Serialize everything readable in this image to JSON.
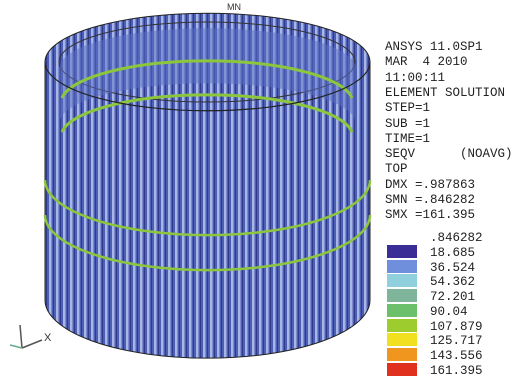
{
  "header": {
    "lines": [
      "ANSYS 11.0SP1",
      "MAR  4 2010",
      "11:00:11",
      "ELEMENT SOLUTION",
      "STEP=1",
      "SUB =1",
      "TIME=1",
      "SEQV      (NOAVG)",
      "TOP",
      "DMX =.987863",
      "SMN =.846282",
      "SMX =161.395"
    ]
  },
  "legend": {
    "min_label": ".846282",
    "items": [
      {
        "color": "#3a2e96",
        "label": "18.685"
      },
      {
        "color": "#6f8fdc",
        "label": "36.524"
      },
      {
        "color": "#8fd0dc",
        "label": "54.362"
      },
      {
        "color": "#7fb59a",
        "label": "72.201"
      },
      {
        "color": "#6cc06c",
        "label": "90.04"
      },
      {
        "color": "#9ccc2e",
        "label": "107.879"
      },
      {
        "color": "#f0e020",
        "label": "125.717"
      },
      {
        "color": "#f0961e",
        "label": "143.556"
      },
      {
        "color": "#e0301e",
        "label": "161.395"
      }
    ]
  },
  "annotations": {
    "mn": "MN",
    "axis_x": "X"
  }
}
